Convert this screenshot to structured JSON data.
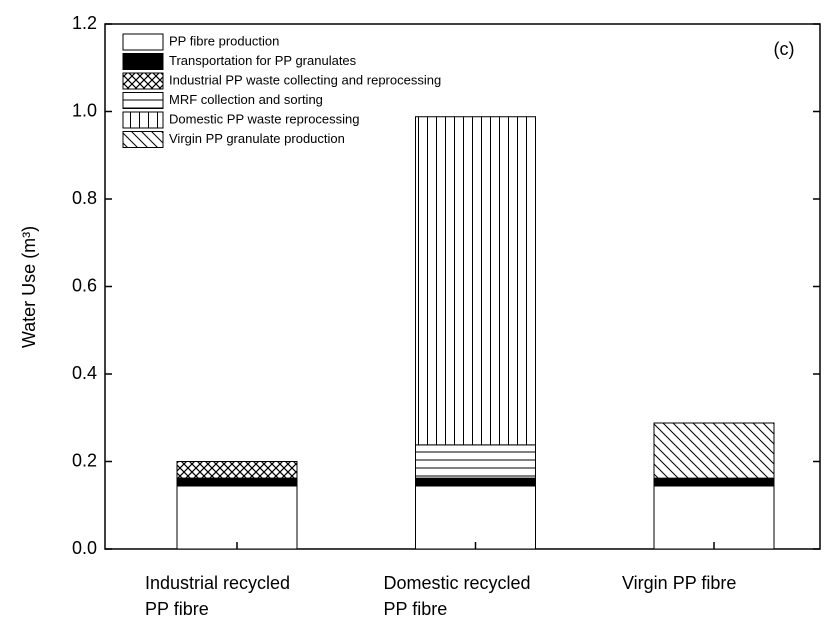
{
  "chart_data": {
    "type": "stacked_bar",
    "ylabel": "Water Use (m³)",
    "annotation": "(c)",
    "categories": [
      "Industrial recycled\nPP fibre",
      "Domestic recycled\nPP fibre",
      "Virgin PP fibre"
    ],
    "series": [
      {
        "name": "PP fibre production",
        "color": "#ffffff",
        "pattern": "none",
        "values": [
          0.144,
          0.144,
          0.144
        ]
      },
      {
        "name": "Transportation for PP granulates",
        "color": "#000000",
        "pattern": "solid",
        "values": [
          0.018,
          0.018,
          0.018
        ]
      },
      {
        "name": "Industrial PP waste collecting and reprocessing",
        "color": "#000000",
        "pattern": "crosshatch",
        "values": [
          0.038,
          null,
          null
        ]
      },
      {
        "name": "MRF collection and sorting",
        "color": "#000000",
        "pattern": "horizontal",
        "values": [
          null,
          0.076,
          null
        ]
      },
      {
        "name": "Domestic PP waste reprocessing",
        "color": "#000000",
        "pattern": "vertical",
        "values": [
          null,
          0.75,
          null
        ]
      },
      {
        "name": "Virgin PP granulate production",
        "color": "#000000",
        "pattern": "diagonal",
        "values": [
          null,
          null,
          0.126
        ]
      }
    ],
    "ylim": [
      0,
      1.2
    ],
    "yticks": [
      {
        "value": 0,
        "label": "0.0"
      },
      0.2,
      0.4,
      0.6,
      0.8,
      {
        "value": 1,
        "label": "1.0"
      },
      1.2
    ],
    "legend": "upper left"
  }
}
